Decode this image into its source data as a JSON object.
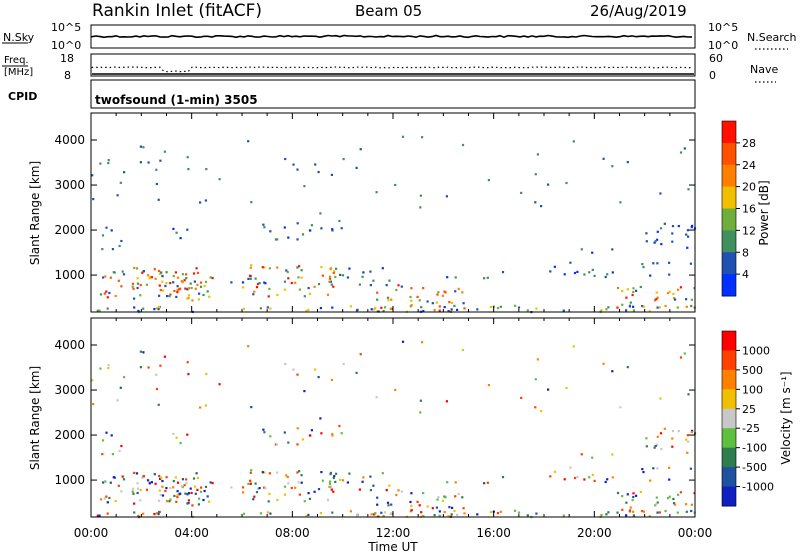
{
  "header": {
    "station": "Rankin Inlet (fitACF)",
    "beam": "Beam 05",
    "date": "26/Aug/2019"
  },
  "chart_data": [
    {
      "type": "line",
      "panel": "noise",
      "labels": {
        "left": "N.Sky",
        "right": "N.Search"
      },
      "left_ticks": [
        "10^5",
        "10^0"
      ],
      "right_ticks": [
        "10^5",
        "10^0"
      ],
      "legend_marker": "dotted"
    },
    {
      "type": "line",
      "panel": "frequency",
      "labels": {
        "left_top": "Freq.",
        "left_bottom": "[MHz]",
        "right": "Nave"
      },
      "left_ticks": [
        "18",
        "8"
      ],
      "right_ticks": [
        "60",
        "0"
      ],
      "legend_marker": "dotted"
    },
    {
      "type": "table",
      "panel": "cpid",
      "label": "CPID",
      "program": "twofsound (1-min) 3505"
    },
    {
      "type": "heatmap",
      "panel": "power",
      "ylabel": "Slant Range [km]",
      "ylim": [
        180,
        4600
      ],
      "yticks": [
        1000,
        2000,
        3000,
        4000
      ],
      "xlim": [
        0,
        24
      ],
      "colorbar": {
        "label": "Power [dB]",
        "ticks": [
          "4",
          "8",
          "12",
          "16",
          "20",
          "24",
          "28"
        ],
        "colors": [
          "#0030ff",
          "#2050b0",
          "#3f8f5f",
          "#6fae3a",
          "#f0c000",
          "#ff8000",
          "#ff5000",
          "#ff1000"
        ]
      }
    },
    {
      "type": "heatmap",
      "panel": "velocity",
      "ylabel": "Slant Range [km]",
      "ylim": [
        180,
        4600
      ],
      "yticks": [
        1000,
        2000,
        3000,
        4000
      ],
      "xlim": [
        0,
        24
      ],
      "xlabel": "Time UT",
      "xticks": [
        "00:00",
        "04:00",
        "08:00",
        "12:00",
        "16:00",
        "20:00",
        "00:00"
      ],
      "colorbar": {
        "label": "Velocity [m s⁻¹]",
        "ticks": [
          "1000",
          "500",
          "100",
          "25",
          "-25",
          "-100",
          "-500",
          "-1000"
        ],
        "colors": [
          "#1020c0",
          "#2050a0",
          "#2e7d4f",
          "#5fbf3f",
          "#c8c8c8",
          "#f0c000",
          "#ff8000",
          "#ff4000",
          "#ff0000"
        ]
      }
    }
  ]
}
